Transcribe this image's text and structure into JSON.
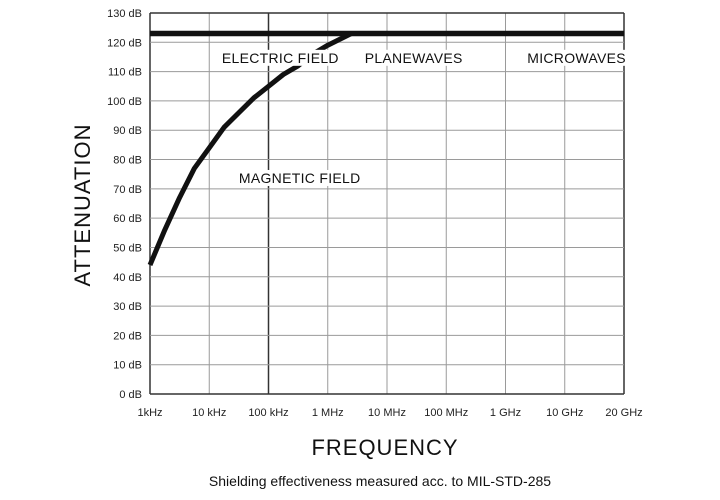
{
  "chart_data": {
    "type": "line",
    "xlabel": "FREQUENCY",
    "ylabel": "ATTENUATION",
    "caption": "Shielding effectiveness measured acc. to MIL-STD-285",
    "x_categories": [
      "1kHz",
      "10 kHz",
      "100 kHz",
      "1 MHz",
      "10 MHz",
      "100 MHz",
      "1 GHz",
      "10 GHz",
      "20 GHz"
    ],
    "y_ticks": [
      0,
      10,
      20,
      30,
      40,
      50,
      60,
      70,
      80,
      90,
      100,
      110,
      120,
      130
    ],
    "y_tick_suffix": " dB",
    "ylim": [
      0,
      130
    ],
    "regions": [
      {
        "label": "ELECTRIC FIELD",
        "x": 2.2,
        "y": 113
      },
      {
        "label": "PLANEWAVES",
        "x": 4.45,
        "y": 113
      },
      {
        "label": "MICROWAVES",
        "x": 7.2,
        "y": 113
      }
    ],
    "annotations": [
      {
        "label": "MAGNETIC FIELD",
        "x": 1.5,
        "y": 72
      }
    ],
    "series": [
      {
        "name": "Magnetic field attenuation",
        "x": [
          0,
          0.25,
          0.5,
          0.75,
          1.0,
          1.25,
          1.5,
          1.75,
          2.0,
          2.25,
          2.5,
          2.75,
          3.0,
          3.2,
          3.4
        ],
        "y": [
          44,
          56,
          67,
          77,
          84,
          91,
          96,
          101,
          105,
          109,
          112,
          116,
          119,
          121,
          123
        ]
      },
      {
        "name": "Plane wave / microwave attenuation",
        "x": [
          0,
          8
        ],
        "y": [
          123,
          123
        ]
      }
    ]
  }
}
